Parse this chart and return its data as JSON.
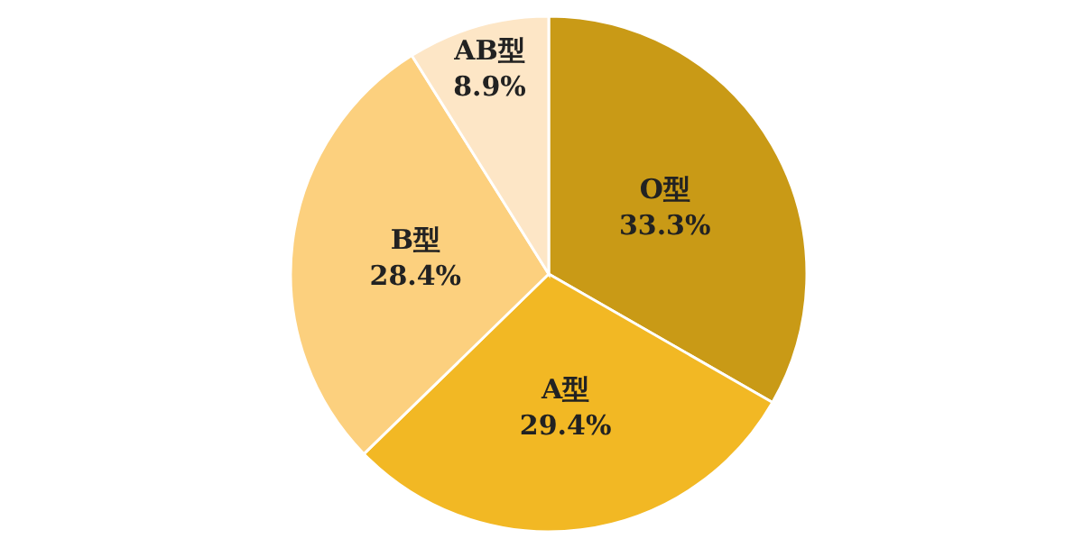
{
  "chart_data": {
    "type": "pie",
    "categories": [
      "O型",
      "A型",
      "B型",
      "AB型"
    ],
    "values": [
      33.3,
      29.4,
      28.4,
      8.9
    ],
    "colors": [
      "#c99a16",
      "#f2b824",
      "#fcd07e",
      "#fde6c6"
    ],
    "value_labels": [
      "33.3%",
      "29.4%",
      "28.4%",
      "8.9%"
    ],
    "legend": false
  }
}
